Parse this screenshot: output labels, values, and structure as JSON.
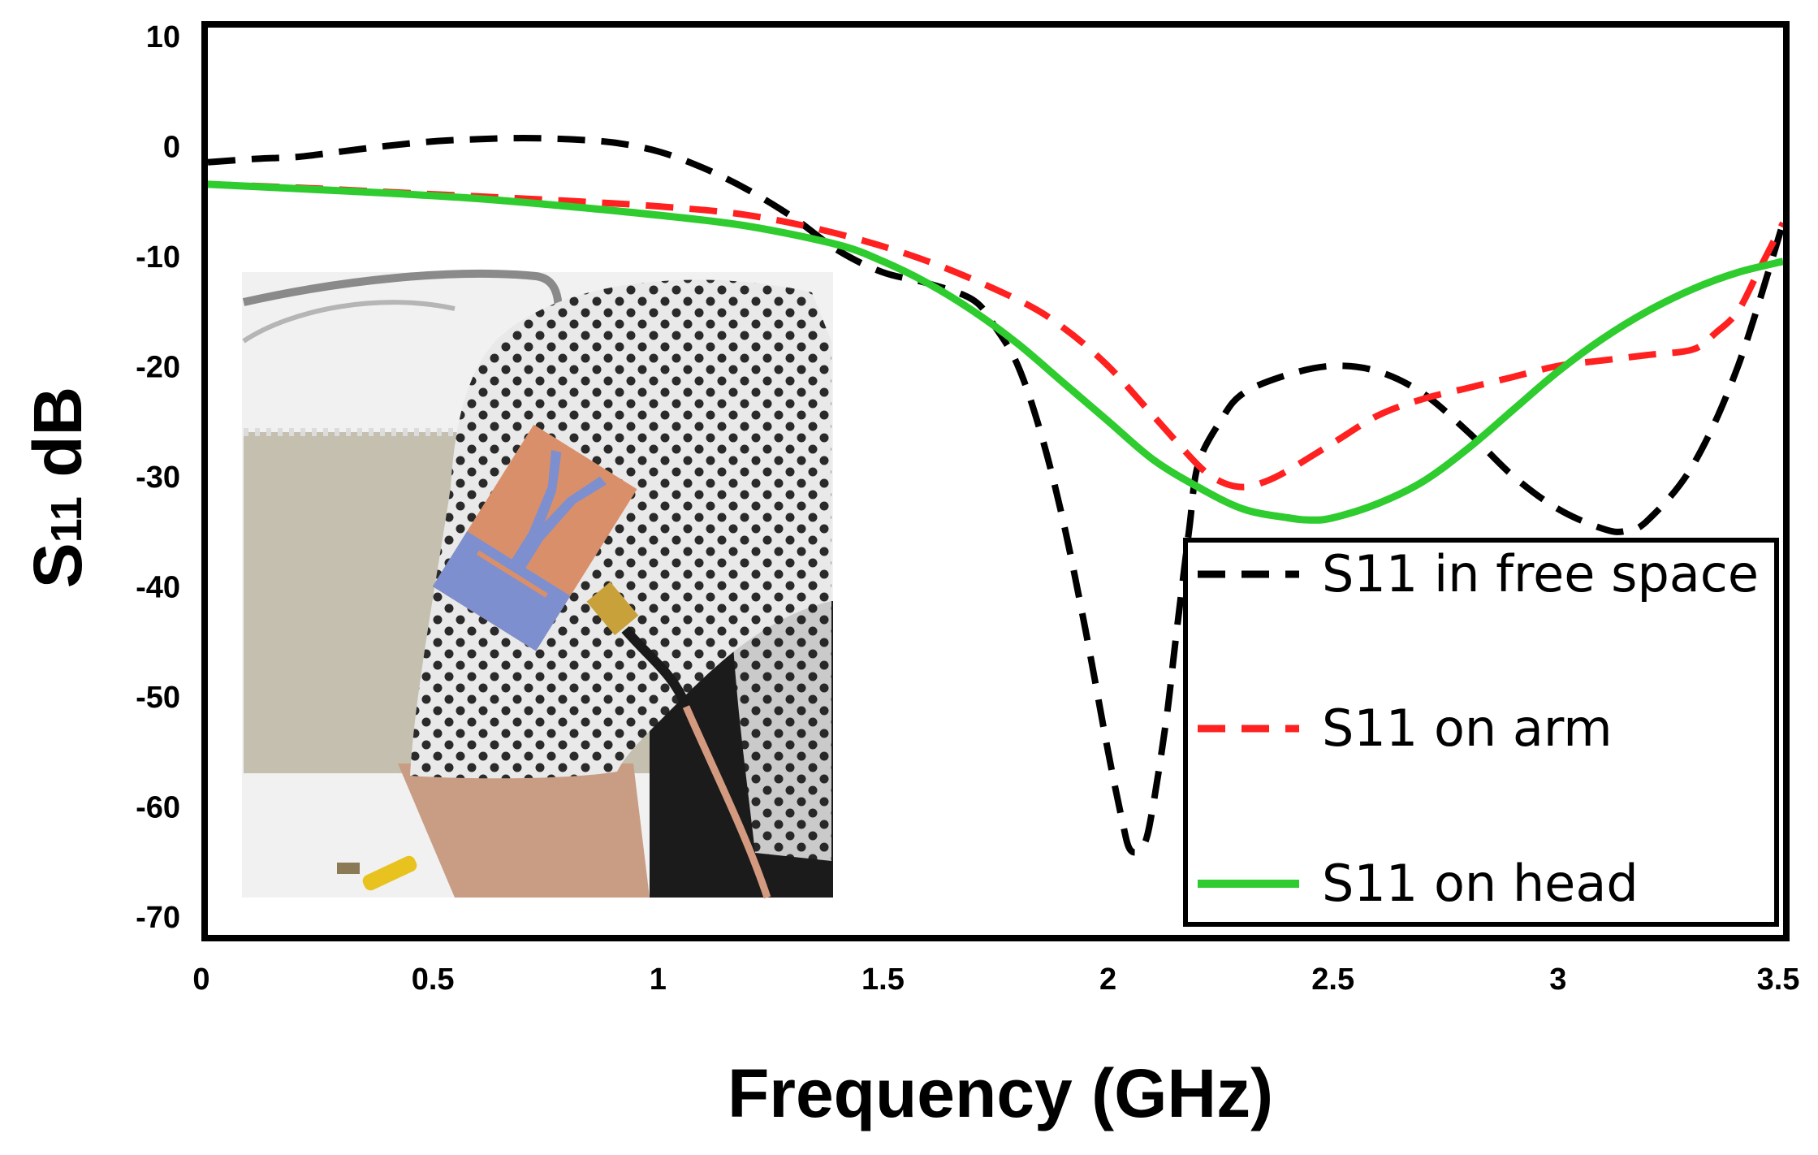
{
  "chart_data": {
    "type": "line",
    "title": "",
    "xlabel": "Frequency (GHz)",
    "ylabel_main": "S",
    "ylabel_sub": "11",
    "ylabel_unit": " dB",
    "xlim": [
      0,
      3.5
    ],
    "ylim": [
      -72,
      10
    ],
    "xticks": [
      0,
      0.5,
      1,
      1.5,
      2,
      2.5,
      3,
      3.5
    ],
    "xtick_labels": [
      "0",
      "0.5",
      "1",
      "1.5",
      "2",
      "2.5",
      "3",
      "3.5"
    ],
    "yticks": [
      10,
      0,
      -10,
      -20,
      -30,
      -40,
      -50,
      -60,
      -70
    ],
    "ytick_labels": [
      "10",
      "0",
      "-10",
      "-20",
      "-30",
      "-40",
      "-50",
      "-60",
      "-70"
    ],
    "grid": false,
    "legend_position": "bottom-right",
    "inset": "photo of flexible copper antenna patch worn on upper arm with coaxial cable",
    "series": [
      {
        "name": "S11 in free space",
        "color": "#000000",
        "style": "dashed",
        "x": [
          0,
          0.1,
          0.2,
          0.3,
          0.4,
          0.5,
          0.6,
          0.7,
          0.8,
          0.9,
          1.0,
          1.1,
          1.2,
          1.3,
          1.4,
          1.5,
          1.6,
          1.7,
          1.75,
          1.8,
          1.85,
          1.9,
          1.95,
          2.0,
          2.03,
          2.05,
          2.08,
          2.1,
          2.13,
          2.15,
          2.18,
          2.2,
          2.25,
          2.3,
          2.4,
          2.5,
          2.6,
          2.7,
          2.8,
          2.9,
          3.0,
          3.1,
          3.15,
          3.2,
          3.3,
          3.4,
          3.5
        ],
        "y": [
          -1.5,
          -1.2,
          -1.0,
          -0.5,
          0.0,
          0.4,
          0.6,
          0.7,
          0.6,
          0.3,
          -0.5,
          -2.0,
          -4.0,
          -6.5,
          -9.5,
          -11.5,
          -12.5,
          -14.0,
          -16.5,
          -20.0,
          -26.0,
          -34.0,
          -44.0,
          -55.0,
          -61.0,
          -64.0,
          -63.5,
          -60.0,
          -52.0,
          -45.0,
          -35.0,
          -29.0,
          -25.0,
          -22.5,
          -20.8,
          -20.0,
          -20.5,
          -22.5,
          -26.0,
          -30.0,
          -33.0,
          -34.8,
          -35.0,
          -34.0,
          -29.0,
          -20.0,
          -7.0
        ]
      },
      {
        "name": "S11 on arm",
        "color": "#ff2020",
        "style": "dashed",
        "x": [
          0,
          0.2,
          0.4,
          0.6,
          0.8,
          1.0,
          1.2,
          1.4,
          1.6,
          1.8,
          1.9,
          2.0,
          2.1,
          2.2,
          2.25,
          2.3,
          2.35,
          2.4,
          2.5,
          2.6,
          2.7,
          2.8,
          2.9,
          3.0,
          3.1,
          3.2,
          3.3,
          3.35,
          3.4,
          3.45,
          3.5
        ],
        "y": [
          -3.5,
          -3.8,
          -4.2,
          -4.6,
          -5.0,
          -5.5,
          -6.3,
          -8.0,
          -10.5,
          -14.0,
          -16.5,
          -20.0,
          -24.5,
          -29.0,
          -30.5,
          -31.0,
          -30.5,
          -29.5,
          -27.0,
          -24.5,
          -23.0,
          -22.0,
          -21.0,
          -20.0,
          -19.5,
          -19.0,
          -18.5,
          -17.0,
          -15.0,
          -11.0,
          -7.0
        ]
      },
      {
        "name": "S11 on head",
        "color": "#2ecc2e",
        "style": "solid",
        "x": [
          0,
          0.2,
          0.4,
          0.6,
          0.8,
          1.0,
          1.2,
          1.4,
          1.5,
          1.6,
          1.7,
          1.8,
          1.9,
          2.0,
          2.1,
          2.2,
          2.3,
          2.4,
          2.45,
          2.5,
          2.6,
          2.7,
          2.8,
          2.9,
          3.0,
          3.1,
          3.2,
          3.3,
          3.4,
          3.5
        ],
        "y": [
          -3.5,
          -3.9,
          -4.3,
          -4.8,
          -5.5,
          -6.3,
          -7.3,
          -9.0,
          -10.5,
          -12.5,
          -15.0,
          -18.0,
          -21.5,
          -25.0,
          -28.5,
          -31.0,
          -33.0,
          -33.8,
          -34.0,
          -33.8,
          -32.5,
          -30.5,
          -27.5,
          -24.0,
          -20.5,
          -17.5,
          -15.0,
          -13.0,
          -11.5,
          -10.5
        ]
      }
    ]
  }
}
